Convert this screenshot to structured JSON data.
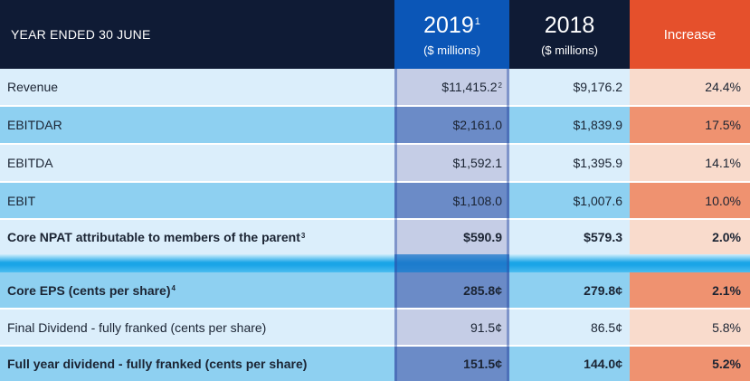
{
  "header": {
    "label": "YEAR ENDED 30 JUNE",
    "col2019_year": "2019",
    "col2019_note": "1",
    "col2019_unit": "($ millions)",
    "col2018_year": "2018",
    "col2018_unit": "($ millions)",
    "increase": "Increase"
  },
  "rows": [
    {
      "label": "Revenue",
      "label_note": "",
      "v2019": "$11,415.2",
      "v2019_note": "2",
      "v2018": "$9,176.2",
      "increase": "24.4%"
    },
    {
      "label": "EBITDAR",
      "label_note": "",
      "v2019": "$2,161.0",
      "v2019_note": "",
      "v2018": "$1,839.9",
      "increase": "17.5%"
    },
    {
      "label": "EBITDA",
      "label_note": "",
      "v2019": "$1,592.1",
      "v2019_note": "",
      "v2018": "$1,395.9",
      "increase": "14.1%"
    },
    {
      "label": "EBIT",
      "label_note": "",
      "v2019": "$1,108.0",
      "v2019_note": "",
      "v2018": "$1,007.6",
      "increase": "10.0%"
    },
    {
      "label": "Core NPAT attributable to members of the parent",
      "label_note": "3",
      "v2019": "$590.9",
      "v2019_note": "",
      "v2018": "$579.3",
      "increase": "2.0%"
    },
    {
      "label": "Core EPS (cents per share)",
      "label_note": "4",
      "v2019": "285.8¢",
      "v2019_note": "",
      "v2018": "279.8¢",
      "increase": "2.1%"
    },
    {
      "label": "Final Dividend - fully franked (cents per share)",
      "label_note": "",
      "v2019": "91.5¢",
      "v2019_note": "",
      "v2018": "86.5¢",
      "increase": "5.8%"
    },
    {
      "label": "Full year dividend - fully franked (cents per share)",
      "label_note": "",
      "v2019": "151.5¢",
      "v2019_note": "",
      "v2018": "144.0¢",
      "increase": "5.2%"
    }
  ],
  "colors": {
    "header_bg": "#0f1b35",
    "col2019_header": "#0b56b7",
    "increase_header": "#e5502c",
    "row_light": "#dbeefb",
    "row_dark": "#8ed0f1",
    "accent_blue": "#1aa5e7"
  }
}
